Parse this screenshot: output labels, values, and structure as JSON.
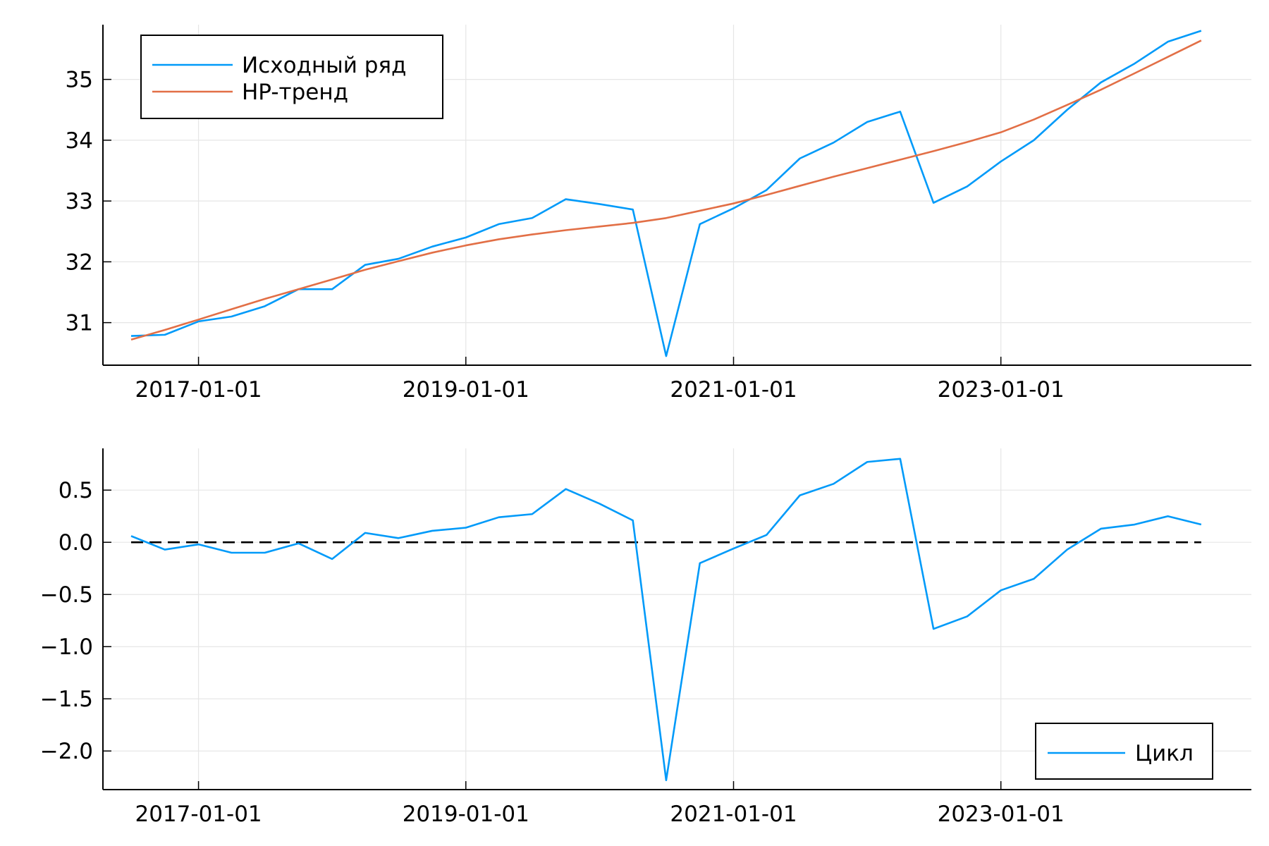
{
  "chart_data": [
    {
      "type": "line",
      "title": "",
      "xlabel": "",
      "ylabel": "",
      "x_type": "date",
      "x": [
        "2016-07-01",
        "2016-10-01",
        "2017-01-01",
        "2017-04-01",
        "2017-07-01",
        "2017-10-01",
        "2018-01-01",
        "2018-04-01",
        "2018-07-01",
        "2018-10-01",
        "2019-01-01",
        "2019-04-01",
        "2019-07-01",
        "2019-10-01",
        "2020-01-01",
        "2020-04-01",
        "2020-07-01",
        "2020-10-01",
        "2021-01-01",
        "2021-04-01",
        "2021-07-01",
        "2021-10-01",
        "2022-01-01",
        "2022-04-01",
        "2022-07-01",
        "2022-10-01",
        "2023-01-01",
        "2023-04-01",
        "2023-07-01",
        "2023-10-01",
        "2024-01-01",
        "2024-04-01",
        "2024-07-01"
      ],
      "xticks": [
        "2017-01-01",
        "2019-01-01",
        "2021-01-01",
        "2023-01-01"
      ],
      "xlim": [
        "2016-04-15",
        "2024-11-15"
      ],
      "yticks": [
        "31",
        "32",
        "33",
        "34",
        "35"
      ],
      "ylim": [
        30.3,
        35.9
      ],
      "grid": true,
      "legend_position": "top-left",
      "series": [
        {
          "name": "Исходный ряд",
          "color": "#009af9",
          "values": [
            30.78,
            30.8,
            31.02,
            31.1,
            31.27,
            31.55,
            31.55,
            31.95,
            32.05,
            32.25,
            32.4,
            32.62,
            32.72,
            33.03,
            32.95,
            32.86,
            30.45,
            32.62,
            32.88,
            33.18,
            33.7,
            33.96,
            34.3,
            34.47,
            32.97,
            33.24,
            33.65,
            34.0,
            34.5,
            34.95,
            35.26,
            35.62,
            35.8
          ]
        },
        {
          "name": "HP-тренд",
          "color": "#e26f46",
          "values": [
            30.72,
            30.88,
            31.05,
            31.22,
            31.39,
            31.55,
            31.71,
            31.87,
            32.01,
            32.15,
            32.27,
            32.37,
            32.45,
            32.52,
            32.58,
            32.64,
            32.72,
            32.84,
            32.96,
            33.1,
            33.25,
            33.4,
            33.54,
            33.68,
            33.82,
            33.97,
            34.13,
            34.34,
            34.58,
            34.83,
            35.1,
            35.37,
            35.64
          ]
        }
      ]
    },
    {
      "type": "line",
      "title": "",
      "xlabel": "",
      "ylabel": "",
      "x_type": "date",
      "x": [
        "2016-07-01",
        "2016-10-01",
        "2017-01-01",
        "2017-04-01",
        "2017-07-01",
        "2017-10-01",
        "2018-01-01",
        "2018-04-01",
        "2018-07-01",
        "2018-10-01",
        "2019-01-01",
        "2019-04-01",
        "2019-07-01",
        "2019-10-01",
        "2020-01-01",
        "2020-04-01",
        "2020-07-01",
        "2020-10-01",
        "2021-01-01",
        "2021-04-01",
        "2021-07-01",
        "2021-10-01",
        "2022-01-01",
        "2022-04-01",
        "2022-07-01",
        "2022-10-01",
        "2023-01-01",
        "2023-04-01",
        "2023-07-01",
        "2023-10-01",
        "2024-01-01",
        "2024-04-01",
        "2024-07-01"
      ],
      "xticks": [
        "2017-01-01",
        "2019-01-01",
        "2021-01-01",
        "2023-01-01"
      ],
      "xlim": [
        "2016-04-15",
        "2024-11-15"
      ],
      "yticks": [
        "0.5",
        "0.0",
        "−0.5",
        "−1.0",
        "−1.5",
        "−2.0"
      ],
      "ylim": [
        -2.37,
        0.9
      ],
      "grid": true,
      "legend_position": "bottom-right",
      "reference_line": {
        "y": 0,
        "style": "dashed",
        "color": "#000000"
      },
      "series": [
        {
          "name": "Цикл",
          "color": "#009af9",
          "values": [
            0.06,
            -0.07,
            -0.02,
            -0.1,
            -0.1,
            -0.01,
            -0.16,
            0.09,
            0.04,
            0.11,
            0.14,
            0.24,
            0.27,
            0.51,
            0.37,
            0.21,
            -2.28,
            -0.2,
            -0.06,
            0.07,
            0.45,
            0.56,
            0.77,
            0.8,
            -0.83,
            -0.71,
            -0.46,
            -0.35,
            -0.07,
            0.13,
            0.17,
            0.25,
            0.17
          ]
        }
      ]
    }
  ]
}
